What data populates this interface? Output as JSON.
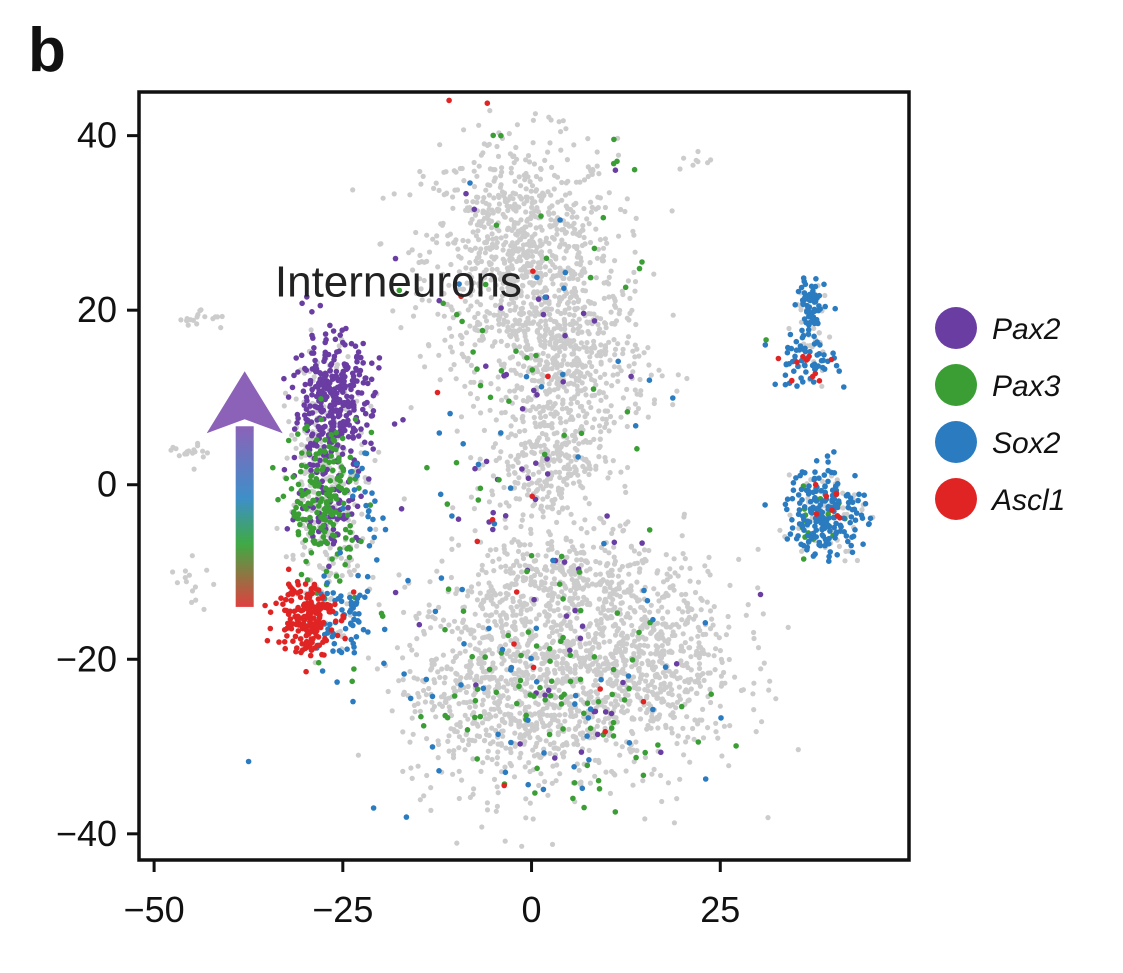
{
  "panel_label": "b",
  "colors": {
    "background_cells": "#cccccc",
    "Pax2": "#6a3da3",
    "Pax3": "#3a9e35",
    "Sox2": "#2a7bbf",
    "Ascl1": "#e02424",
    "arrow_top": "#8b62b8",
    "arrow_mid": "#3e8fc8",
    "arrow_low": "#3faa45",
    "arrow_bottom": "#e04040"
  },
  "chart_data": {
    "type": "scatter",
    "title": "",
    "xlabel": "",
    "ylabel": "",
    "xlim": [
      -52,
      50
    ],
    "ylim": [
      -43,
      45
    ],
    "xticks": [
      -50,
      -25,
      0,
      25
    ],
    "xtick_labels": [
      "−50",
      "−25",
      "0",
      "25"
    ],
    "yticks": [
      40,
      20,
      0,
      -20,
      -40
    ],
    "ytick_labels": [
      "40",
      "20",
      "0",
      "−20",
      "−40"
    ],
    "grid": false,
    "legend": {
      "position": "right",
      "entries": [
        "Pax2",
        "Pax3",
        "Sox2",
        "Ascl1"
      ]
    },
    "annotations": [
      {
        "text": "Interneurons",
        "x": -34,
        "y": 22
      }
    ],
    "arrow": {
      "from": [
        -38,
        -14
      ],
      "to": [
        -38,
        13
      ]
    },
    "series": [
      {
        "name": "",
        "role": "background",
        "clusters": [
          {
            "cx": -1.5,
            "cy": 26,
            "sx": 8.5,
            "sy": 9,
            "n": 900
          },
          {
            "cx": 5,
            "cy": 14,
            "sx": 7,
            "sy": 6,
            "n": 450
          },
          {
            "cx": 2,
            "cy": 3,
            "sx": 5,
            "sy": 5,
            "n": 300
          },
          {
            "cx": -2,
            "cy": -23,
            "sx": 10,
            "sy": 8,
            "n": 900
          },
          {
            "cx": 15,
            "cy": -20,
            "sx": 8.5,
            "sy": 8,
            "n": 700
          },
          {
            "cx": 3,
            "cy": -11,
            "sx": 8,
            "sy": 4,
            "n": 300
          },
          {
            "cx": -27,
            "cy": 0,
            "sx": 3.5,
            "sy": 10,
            "n": 300
          },
          {
            "cx": -44,
            "cy": 19,
            "sx": 2,
            "sy": 1,
            "n": 18
          },
          {
            "cx": -45,
            "cy": 4,
            "sx": 2,
            "sy": 1,
            "n": 18
          },
          {
            "cx": -45,
            "cy": -11,
            "sx": 2,
            "sy": 2,
            "n": 14
          },
          {
            "cx": 22,
            "cy": 37,
            "sx": 2,
            "sy": 1,
            "n": 8
          },
          {
            "cx": 37,
            "cy": 17,
            "sx": 1.6,
            "sy": 4,
            "n": 35
          },
          {
            "cx": 39,
            "cy": -3,
            "sx": 3.5,
            "sy": 3.5,
            "n": 60
          }
        ]
      },
      {
        "name": "Pax2",
        "clusters": [
          {
            "cx": -26.5,
            "cy": 9,
            "sx": 3.5,
            "sy": 5.5,
            "n": 360
          },
          {
            "cx": -27,
            "cy": -3,
            "sx": 2.8,
            "sy": 2.5,
            "n": 60
          },
          {
            "cx": -2,
            "cy": 10,
            "sx": 13,
            "sy": 20,
            "n": 45
          },
          {
            "cx": 8,
            "cy": -23,
            "sx": 12,
            "sy": 8,
            "n": 25
          }
        ]
      },
      {
        "name": "Pax3",
        "clusters": [
          {
            "cx": -27.5,
            "cy": -2,
            "sx": 3,
            "sy": 6,
            "n": 190
          },
          {
            "cx": -1,
            "cy": 12,
            "sx": 12,
            "sy": 18,
            "n": 50
          },
          {
            "cx": 3,
            "cy": -25,
            "sx": 14,
            "sy": 8,
            "n": 90
          },
          {
            "cx": 38,
            "cy": -4,
            "sx": 3,
            "sy": 3,
            "n": 20
          }
        ]
      },
      {
        "name": "Sox2",
        "clusters": [
          {
            "cx": 37,
            "cy": 20,
            "sx": 1.2,
            "sy": 2.8,
            "n": 70
          },
          {
            "cx": 36,
            "cy": 14,
            "sx": 3,
            "sy": 1.8,
            "n": 55
          },
          {
            "cx": 39,
            "cy": -3,
            "sx": 3.5,
            "sy": 3.5,
            "n": 190
          },
          {
            "cx": -25,
            "cy": -16,
            "sx": 3,
            "sy": 3,
            "n": 70
          },
          {
            "cx": -22,
            "cy": -3,
            "sx": 3,
            "sy": 6,
            "n": 25
          },
          {
            "cx": -3,
            "cy": 10,
            "sx": 14,
            "sy": 20,
            "n": 35
          },
          {
            "cx": 0,
            "cy": -26,
            "sx": 16,
            "sy": 8,
            "n": 45
          }
        ]
      },
      {
        "name": "Ascl1",
        "clusters": [
          {
            "cx": -30,
            "cy": -15,
            "sx": 2.6,
            "sy": 3,
            "n": 180
          },
          {
            "cx": 36,
            "cy": 13,
            "sx": 3,
            "sy": 2,
            "n": 10
          },
          {
            "cx": 38,
            "cy": -2,
            "sx": 3,
            "sy": 3,
            "n": 8
          },
          {
            "cx": -4,
            "cy": 10,
            "sx": 14,
            "sy": 20,
            "n": 10
          },
          {
            "cx": 5,
            "cy": -25,
            "sx": 14,
            "sy": 8,
            "n": 6
          }
        ]
      }
    ]
  }
}
